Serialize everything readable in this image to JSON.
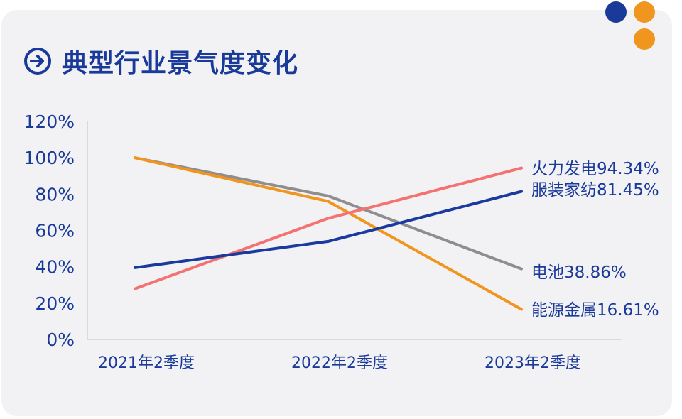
{
  "title": "典型行业景气度变化",
  "icons": {
    "title": "arrow-right-circle-icon"
  },
  "colors": {
    "background": "#f2f2f4",
    "title": "#1a3a9a",
    "axis_text": "#1a3a9a",
    "dot_blue": "#1a3a9a",
    "dot_orange": "#f0951e"
  },
  "chart_data": {
    "type": "line",
    "title": "典型行业景气度变化",
    "categories": [
      "2021年2季度",
      "2022年2季度",
      "2023年2季度"
    ],
    "ylim": [
      0,
      120
    ],
    "yticks": [
      "0%",
      "20%",
      "40%",
      "60%",
      "80%",
      "100%",
      "120%"
    ],
    "grid": false,
    "series": [
      {
        "name": "火力发电",
        "end_label": "火力发电94.34%",
        "values": [
          27.9,
          66.7,
          94.34
        ],
        "color": "#f47272"
      },
      {
        "name": "服装家纺",
        "end_label": "服装家纺81.45%",
        "values": [
          39.5,
          54.0,
          81.45
        ],
        "color": "#1b3a9e"
      },
      {
        "name": "电池",
        "end_label": "电池38.86%",
        "values": [
          100,
          79.0,
          38.86
        ],
        "color": "#8e8e90"
      },
      {
        "name": "能源金属",
        "end_label": "能源金属16.61%",
        "values": [
          100,
          76.0,
          16.61
        ],
        "color": "#f0951e"
      }
    ]
  }
}
